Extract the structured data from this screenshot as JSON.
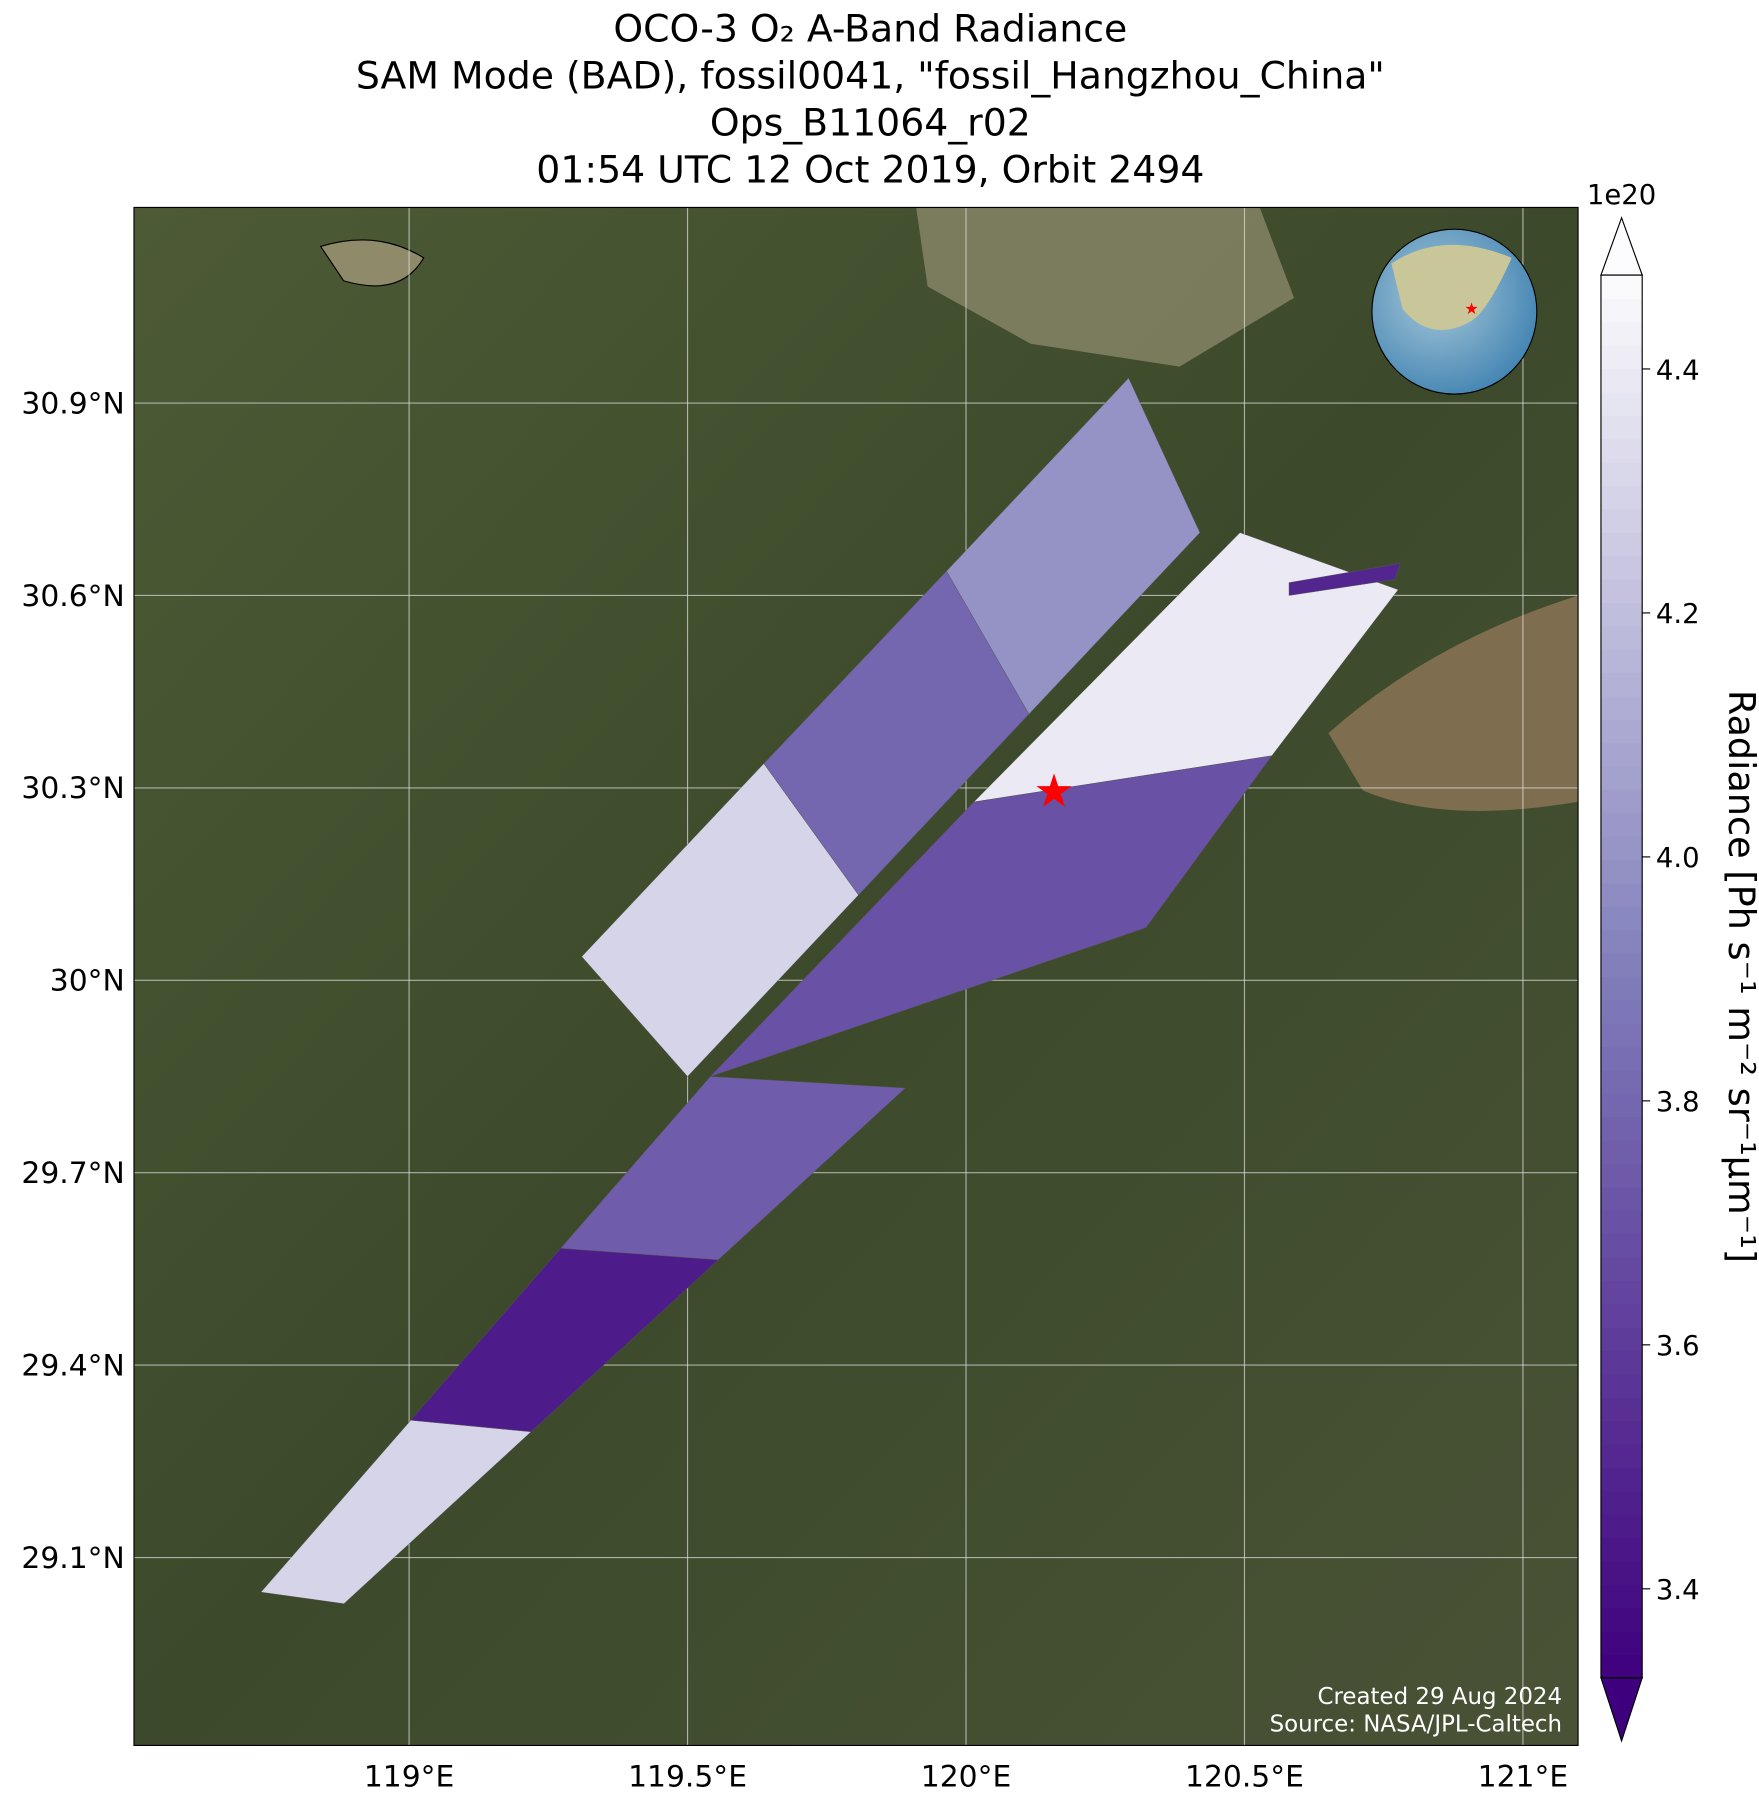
{
  "chart_data": {
    "type": "swath-map",
    "title_lines": [
      "OCO-3 O₂ A-Band Radiance",
      "SAM Mode (BAD), fossil0041, \"fossil_Hangzhou_China\"",
      "Ops_B11064_r02",
      "01:54 UTC 12 Oct 2019, Orbit 2494"
    ],
    "xlim": [
      118.506,
      121.099
    ],
    "ylim": [
      28.807,
      31.205
    ],
    "xticks": [
      {
        "value": 119,
        "label": "119°E"
      },
      {
        "value": 119.5,
        "label": "119.5°E"
      },
      {
        "value": 120,
        "label": "120°E"
      },
      {
        "value": 120.5,
        "label": "120.5°E"
      },
      {
        "value": 121,
        "label": "121°E"
      }
    ],
    "yticks": [
      {
        "value": 29.1,
        "label": "29.1°N"
      },
      {
        "value": 29.4,
        "label": "29.4°N"
      },
      {
        "value": 29.7,
        "label": "29.7°N"
      },
      {
        "value": 30,
        "label": "30°N"
      },
      {
        "value": 30.3,
        "label": "30.3°N"
      },
      {
        "value": 30.6,
        "label": "30.6°N"
      },
      {
        "value": 30.9,
        "label": "30.9°N"
      }
    ],
    "grid": true,
    "colorbar": {
      "label": "Radiance [Ph s⁻¹ m⁻² sr⁻¹μm⁻¹]",
      "offset_label": "1e20",
      "clim": [
        3.327,
        4.477
      ],
      "ticks": [
        3.4,
        3.6,
        3.8,
        4.0,
        4.2,
        4.4
      ],
      "low_color": "#3f007d",
      "mid_color": "#807dba",
      "high_color": "#fcfbfd"
    },
    "swath": {
      "segments": [
        {
          "lon": [
            119.31,
            119.5,
            119.807,
            119.637
          ],
          "lat": [
            30.037,
            29.85,
            30.133,
            30.338
          ],
          "value": 4.3
        },
        {
          "lon": [
            119.637,
            119.807,
            120.113,
            119.965
          ],
          "lat": [
            30.338,
            30.133,
            30.415,
            30.638
          ],
          "value": 3.8
        },
        {
          "lon": [
            119.965,
            120.113,
            120.42,
            120.292
          ],
          "lat": [
            30.638,
            30.415,
            30.698,
            30.939
          ],
          "value": 4.0
        },
        {
          "lon": [
            120.014,
            120.549,
            120.776,
            120.492
          ],
          "lat": [
            30.278,
            30.35,
            30.609,
            30.698
          ],
          "value": 4.4
        },
        {
          "lon": [
            119.541,
            120.323,
            120.549,
            120.014
          ],
          "lat": [
            29.85,
            30.082,
            30.35,
            30.278
          ],
          "value": 3.7
        },
        {
          "lon": [
            119.272,
            119.555,
            119.891,
            119.541
          ],
          "lat": [
            29.582,
            29.564,
            29.832,
            29.85
          ],
          "value": 3.75
        },
        {
          "lon": [
            119.003,
            119.219,
            119.555,
            119.272
          ],
          "lat": [
            29.314,
            29.296,
            29.564,
            29.582
          ],
          "value": 3.45
        },
        {
          "lon": [
            118.734,
            118.883,
            119.219,
            119.003
          ],
          "lat": [
            29.046,
            29.028,
            29.296,
            29.314
          ],
          "value": 4.3
        },
        {
          "lon": [
            120.58,
            120.78,
            120.77,
            120.58
          ],
          "lat": [
            30.62,
            30.65,
            30.625,
            30.6
          ],
          "value": 3.5
        }
      ]
    },
    "target": {
      "lon": 120.158,
      "lat": 30.296
    },
    "footer": [
      "Created 29 Aug 2024",
      "Source: NASA/JPL-Caltech"
    ]
  }
}
